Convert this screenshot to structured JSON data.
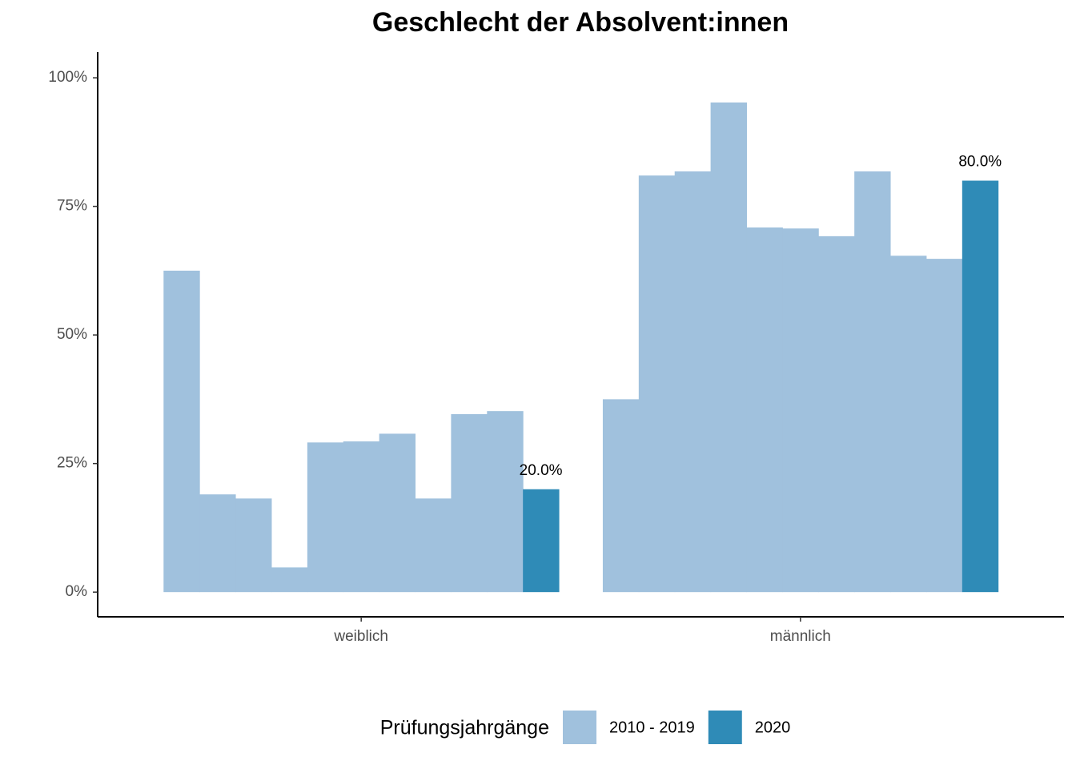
{
  "chart_data": {
    "type": "bar",
    "title": "Geschlecht der Absolvent:innen",
    "categories": [
      "weiblich",
      "männlich"
    ],
    "legend_title": "Prüfungsjahrgänge",
    "legend": "bottom",
    "series": [
      {
        "name": "2010 - 2019",
        "color": "#a0c1dd",
        "values": [
          [
            62.5,
            19.0,
            18.2,
            4.8,
            29.1,
            29.3,
            30.8,
            18.2,
            34.6,
            35.2
          ],
          [
            37.5,
            81.0,
            81.8,
            95.2,
            70.9,
            70.7,
            69.2,
            81.8,
            65.4,
            64.8
          ]
        ]
      },
      {
        "name": "2020",
        "color": "#2f8bb7",
        "values": [
          20,
          80
        ],
        "value_labels": [
          "20.0%",
          "80.0%"
        ]
      }
    ],
    "ylim": [
      -4.8,
      105
    ],
    "yticks": [
      {
        "value": 0,
        "label": "0%"
      },
      {
        "value": 25,
        "label": "25%"
      },
      {
        "value": 50,
        "label": "50%"
      },
      {
        "value": 75,
        "label": "75%"
      },
      {
        "value": 100,
        "label": "100%"
      }
    ]
  }
}
